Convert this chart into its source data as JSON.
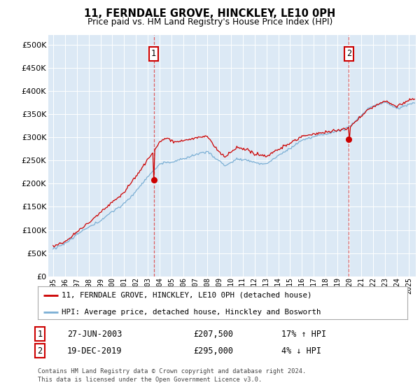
{
  "title": "11, FERNDALE GROVE, HINCKLEY, LE10 0PH",
  "subtitle": "Price paid vs. HM Land Registry's House Price Index (HPI)",
  "bg_color": "#dce9f5",
  "legend_entries": [
    "11, FERNDALE GROVE, HINCKLEY, LE10 0PH (detached house)",
    "HPI: Average price, detached house, Hinckley and Bosworth"
  ],
  "sale1_date": "27-JUN-2003",
  "sale1_price": 207500,
  "sale1_pct": "17%",
  "sale1_dir": "↑",
  "sale1_x": 2003.49,
  "sale2_date": "19-DEC-2019",
  "sale2_price": 295000,
  "sale2_pct": "4%",
  "sale2_dir": "↓",
  "sale2_x": 2019.96,
  "footnote1": "Contains HM Land Registry data © Crown copyright and database right 2024.",
  "footnote2": "This data is licensed under the Open Government Licence v3.0.",
  "red_color": "#cc0000",
  "blue_color": "#7bafd4",
  "dashed_color": "#dd4444",
  "ylim": [
    0,
    520000
  ],
  "yticks": [
    0,
    50000,
    100000,
    150000,
    200000,
    250000,
    300000,
    350000,
    400000,
    450000,
    500000
  ],
  "xmin": 1994.6,
  "xmax": 2025.6
}
